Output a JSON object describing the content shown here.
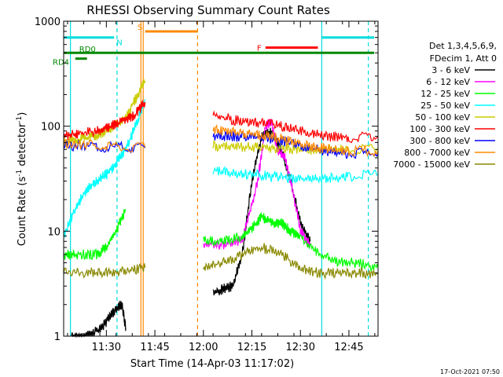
{
  "chart_data": {
    "type": "line",
    "title": "RHESSI Observing Summary Count Rates",
    "xlabel": "Start Time (14-Apr-03 11:17:02)",
    "ylabel_main": "Count Rate (s",
    "ylabel_sup1": "-1",
    "ylabel_mid": " detector",
    "ylabel_sup2": "-1",
    "ylabel_end": ")",
    "y_scale": "log",
    "ylim": [
      1,
      1000
    ],
    "xlim_minutes": [
      11.28,
      12.9
    ],
    "x_ticks": [
      {
        "value": 11.5,
        "label": "11:30"
      },
      {
        "value": 11.75,
        "label": "11:45"
      },
      {
        "value": 12.0,
        "label": "12:00"
      },
      {
        "value": 12.25,
        "label": "12:15"
      },
      {
        "value": 12.5,
        "label": "12:30"
      },
      {
        "value": 12.75,
        "label": "12:45"
      }
    ],
    "y_ticks": [
      {
        "value": 1,
        "label": "1"
      },
      {
        "value": 10,
        "label": "10"
      },
      {
        "value": 100,
        "label": "100"
      },
      {
        "value": 1000,
        "label": "1000"
      }
    ],
    "legend": {
      "placement": "right",
      "header": [
        "Det 1,3,4,5,6,9,",
        "FDecim 1, Att 0"
      ],
      "entries": [
        {
          "label": "3 - 6 keV",
          "color": "#000000"
        },
        {
          "label": "6 - 12 keV",
          "color": "#ff00ff"
        },
        {
          "label": "12 - 25 keV",
          "color": "#00ff00"
        },
        {
          "label": "25 - 50 keV",
          "color": "#00ffff"
        },
        {
          "label": "50 - 100 keV",
          "color": "#cccc00"
        },
        {
          "label": "100 - 300 keV",
          "color": "#ff0000"
        },
        {
          "label": "300 - 800 keV",
          "color": "#0000ff"
        },
        {
          "label": "800 - 7000 keV",
          "color": "#ff8800"
        },
        {
          "label": "7000 - 15000 keV",
          "color": "#888800"
        }
      ]
    },
    "annotations": [
      {
        "label": "N",
        "color": "#00dddd"
      },
      {
        "label": "S",
        "color": "#ff8800"
      },
      {
        "label": "F",
        "color": "#ff0000"
      },
      {
        "label": "RD0",
        "color": "#008800"
      },
      {
        "label": "RD4",
        "color": "#008800"
      }
    ],
    "series": [
      {
        "name": "3 - 6 keV",
        "color": "#000000",
        "segments": [
          [
            [
              11.32,
              1
            ],
            [
              11.4,
              1
            ],
            [
              11.48,
              1.2
            ],
            [
              11.52,
              1.6
            ],
            [
              11.55,
              1.8
            ],
            [
              11.58,
              2.0
            ],
            [
              11.6,
              1.2
            ]
          ],
          [
            [
              12.05,
              2.5
            ],
            [
              12.1,
              2.8
            ],
            [
              12.15,
              3.0
            ],
            [
              12.2,
              6
            ],
            [
              12.25,
              30
            ],
            [
              12.3,
              80
            ],
            [
              12.35,
              90
            ],
            [
              12.4,
              60
            ],
            [
              12.45,
              30
            ],
            [
              12.5,
              12
            ],
            [
              12.55,
              8
            ]
          ]
        ]
      },
      {
        "name": "6 - 12 keV",
        "color": "#ff00ff",
        "segments": [
          [
            [
              12.0,
              7.5
            ],
            [
              12.1,
              7.5
            ],
            [
              12.2,
              8
            ],
            [
              12.28,
              30
            ],
            [
              12.32,
              100
            ],
            [
              12.35,
              110
            ],
            [
              12.38,
              60
            ],
            [
              12.42,
              50
            ],
            [
              12.46,
              25
            ],
            [
              12.5,
              10
            ],
            [
              12.55,
              7.5
            ]
          ]
        ]
      },
      {
        "name": "12 - 25 keV",
        "color": "#00ff00",
        "segments": [
          [
            [
              11.28,
              6
            ],
            [
              11.35,
              6
            ],
            [
              11.45,
              6
            ],
            [
              11.5,
              7
            ],
            [
              11.55,
              10
            ],
            [
              11.6,
              16
            ]
          ],
          [
            [
              12.0,
              8
            ],
            [
              12.1,
              8
            ],
            [
              12.2,
              9
            ],
            [
              12.28,
              12
            ],
            [
              12.3,
              14
            ],
            [
              12.35,
              12
            ],
            [
              12.4,
              12
            ],
            [
              12.45,
              10
            ],
            [
              12.5,
              9
            ],
            [
              12.6,
              6
            ],
            [
              12.7,
              5
            ],
            [
              12.8,
              5
            ],
            [
              12.9,
              4.5
            ]
          ]
        ]
      },
      {
        "name": "25 - 50 keV",
        "color": "#00ffff",
        "segments": [
          [
            [
              11.28,
              9
            ],
            [
              11.35,
              18
            ],
            [
              11.4,
              25
            ],
            [
              11.45,
              30
            ],
            [
              11.5,
              35
            ],
            [
              11.55,
              45
            ],
            [
              11.6,
              60
            ],
            [
              11.65,
              100
            ],
            [
              11.7,
              180
            ]
          ],
          [
            [
              12.05,
              38
            ],
            [
              12.15,
              36
            ],
            [
              12.25,
              35
            ],
            [
              12.35,
              33
            ],
            [
              12.45,
              32
            ],
            [
              12.55,
              31
            ],
            [
              12.65,
              32
            ],
            [
              12.75,
              33
            ],
            [
              12.9,
              35
            ]
          ]
        ]
      },
      {
        "name": "50 - 100 keV",
        "color": "#cccc00",
        "segments": [
          [
            [
              11.28,
              70
            ],
            [
              11.35,
              75
            ],
            [
              11.4,
              78
            ],
            [
              11.45,
              82
            ],
            [
              11.5,
              90
            ],
            [
              11.55,
              105
            ],
            [
              11.6,
              120
            ],
            [
              11.65,
              180
            ],
            [
              11.7,
              270
            ]
          ],
          [
            [
              12.05,
              65
            ],
            [
              12.15,
              64
            ],
            [
              12.25,
              63
            ],
            [
              12.35,
              62
            ],
            [
              12.45,
              61
            ],
            [
              12.55,
              60
            ],
            [
              12.65,
              60
            ],
            [
              12.75,
              60
            ],
            [
              12.9,
              62
            ]
          ]
        ]
      },
      {
        "name": "100 - 300 keV",
        "color": "#ff0000",
        "segments": [
          [
            [
              11.28,
              80
            ],
            [
              11.35,
              85
            ],
            [
              11.45,
              90
            ],
            [
              11.5,
              95
            ],
            [
              11.55,
              105
            ],
            [
              11.6,
              115
            ],
            [
              11.65,
              130
            ],
            [
              11.7,
              170
            ]
          ],
          [
            [
              12.05,
              130
            ],
            [
              12.15,
              115
            ],
            [
              12.25,
              110
            ],
            [
              12.35,
              105
            ],
            [
              12.45,
              95
            ],
            [
              12.55,
              85
            ],
            [
              12.65,
              80
            ],
            [
              12.75,
              78
            ],
            [
              12.9,
              80
            ]
          ]
        ]
      },
      {
        "name": "300 - 800 keV",
        "color": "#0000ff",
        "segments": [
          [
            [
              11.28,
              65
            ],
            [
              11.4,
              64
            ],
            [
              11.55,
              63
            ],
            [
              11.7,
              62
            ]
          ],
          [
            [
              12.05,
              82
            ],
            [
              12.15,
              80
            ],
            [
              12.25,
              78
            ],
            [
              12.35,
              75
            ],
            [
              12.45,
              70
            ],
            [
              12.55,
              62
            ],
            [
              12.65,
              57
            ],
            [
              12.75,
              55
            ],
            [
              12.9,
              55
            ]
          ]
        ]
      },
      {
        "name": "800 - 7000 keV",
        "color": "#ff8800",
        "segments": [
          [
            [
              11.28,
              68
            ],
            [
              11.4,
              66
            ],
            [
              11.55,
              64
            ],
            [
              11.7,
              63
            ]
          ],
          [
            [
              12.05,
              92
            ],
            [
              12.15,
              88
            ],
            [
              12.25,
              85
            ],
            [
              12.35,
              80
            ],
            [
              12.45,
              72
            ],
            [
              12.55,
              65
            ],
            [
              12.65,
              60
            ],
            [
              12.75,
              58
            ],
            [
              12.9,
              58
            ]
          ]
        ]
      },
      {
        "name": "7000 - 15000 keV",
        "color": "#888800",
        "segments": [
          [
            [
              11.28,
              4
            ],
            [
              11.4,
              4
            ],
            [
              11.5,
              4
            ],
            [
              11.6,
              4.2
            ],
            [
              11.7,
              4.5
            ]
          ],
          [
            [
              12.0,
              4.5
            ],
            [
              12.1,
              5
            ],
            [
              12.2,
              6
            ],
            [
              12.3,
              7
            ],
            [
              12.4,
              6
            ],
            [
              12.5,
              4.5
            ],
            [
              12.6,
              4
            ],
            [
              12.7,
              4
            ],
            [
              12.8,
              4
            ],
            [
              12.9,
              4
            ]
          ]
        ]
      }
    ],
    "shaded_attenuator_gaps": [
      [
        11.7,
        12.0
      ]
    ],
    "vertical_markers": [
      {
        "value": 11.315,
        "color": "#00dddd",
        "style": "solid"
      },
      {
        "value": 11.555,
        "color": "#00dddd",
        "style": "dashed"
      },
      {
        "value": 11.678,
        "color": "#ff8800",
        "style": "solid"
      },
      {
        "value": 11.69,
        "color": "#ff8800",
        "style": "solid"
      },
      {
        "value": 11.97,
        "color": "#ff8800",
        "style": "dashed"
      },
      {
        "value": 12.61,
        "color": "#00dddd",
        "style": "solid"
      },
      {
        "value": 12.85,
        "color": "#00dddd",
        "style": "dashed"
      }
    ],
    "horizontal_bars": [
      {
        "label": "N",
        "color": "#00dddd",
        "y": 700,
        "x": [
          11.28,
          11.54
        ]
      },
      {
        "label": "N",
        "color": "#00dddd",
        "y": 700,
        "x": [
          12.61,
          12.88
        ]
      },
      {
        "label": "S",
        "color": "#ff8800",
        "y": 800,
        "x": [
          11.7,
          11.97
        ]
      },
      {
        "label": "F",
        "color": "#ff0000",
        "y": 560,
        "x": [
          12.32,
          12.59
        ]
      },
      {
        "label": "RD0",
        "color": "#008800",
        "y": 500,
        "x": [
          11.28,
          12.88
        ]
      },
      {
        "label": "RD4",
        "color": "#008800",
        "y": 440,
        "x": [
          11.34,
          11.4
        ]
      }
    ]
  },
  "footer": {
    "timestamp": "17-Oct-2021 07:50"
  }
}
